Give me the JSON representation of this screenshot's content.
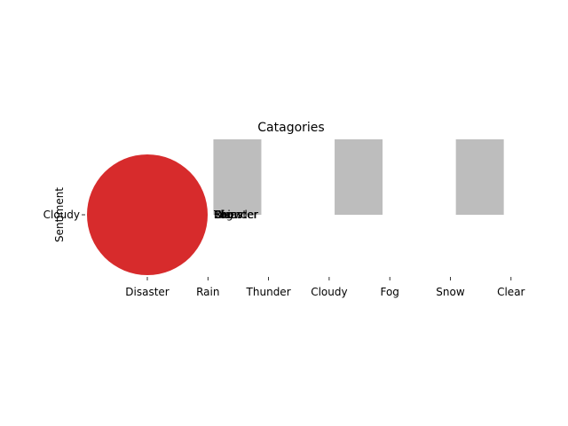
{
  "chart_data": {
    "type": "scatter",
    "title": "Catagories",
    "xlabel": "",
    "ylabel": "Sentiment",
    "categories": [
      "Disaster",
      "Rain",
      "Thunder",
      "Cloudy",
      "Fog",
      "Snow",
      "Clear"
    ],
    "y_categories": [
      "Cloudy"
    ],
    "bars": {
      "color": "#bdbdbd",
      "at": [
        "Rain",
        "Cloudy",
        "Snow"
      ]
    },
    "bubble": {
      "x": "Disaster",
      "y": "Cloudy",
      "color": "#d62728"
    },
    "overlapping_labels": [
      "Disaster",
      "Rain",
      "Thunder",
      "Fog",
      "Snow",
      "Clear"
    ],
    "grid": false,
    "legend": "none"
  }
}
